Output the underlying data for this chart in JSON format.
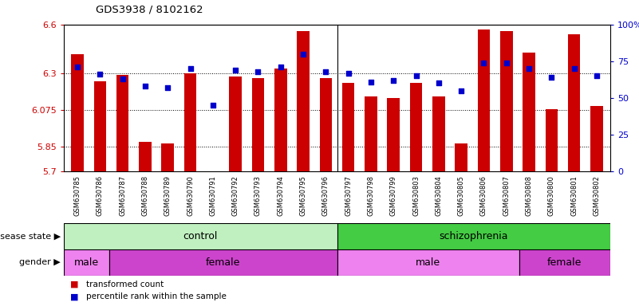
{
  "title": "GDS3938 / 8102162",
  "samples": [
    "GSM630785",
    "GSM630786",
    "GSM630787",
    "GSM630788",
    "GSM630789",
    "GSM630790",
    "GSM630791",
    "GSM630792",
    "GSM630793",
    "GSM630794",
    "GSM630795",
    "GSM630796",
    "GSM630797",
    "GSM630798",
    "GSM630799",
    "GSM630803",
    "GSM630804",
    "GSM630805",
    "GSM630806",
    "GSM630807",
    "GSM630808",
    "GSM630800",
    "GSM630801",
    "GSM630802"
  ],
  "transformed_count": [
    6.42,
    6.25,
    6.29,
    5.88,
    5.87,
    6.3,
    5.7,
    6.28,
    6.27,
    6.33,
    6.56,
    6.27,
    6.24,
    6.16,
    6.15,
    6.24,
    6.16,
    5.87,
    6.57,
    6.56,
    6.43,
    6.08,
    6.54,
    6.1
  ],
  "percentile_rank": [
    71,
    66,
    63,
    58,
    57,
    70,
    45,
    69,
    68,
    71,
    80,
    68,
    67,
    61,
    62,
    65,
    60,
    55,
    74,
    74,
    70,
    64,
    70,
    65
  ],
  "ymin": 5.7,
  "ymax": 6.6,
  "yticks": [
    5.7,
    5.85,
    6.075,
    6.3,
    6.6
  ],
  "ytick_labels": [
    "5.7",
    "5.85",
    "6.075",
    "6.3",
    "6.6"
  ],
  "right_yticks": [
    0,
    25,
    50,
    75,
    100
  ],
  "right_ytick_labels": [
    "0",
    "25",
    "50",
    "75",
    "100%"
  ],
  "bar_color": "#cc0000",
  "dot_color": "#0000cc",
  "bar_width": 0.55,
  "grid_lines": [
    5.85,
    6.075,
    6.3
  ],
  "axis_label_color": "#cc0000",
  "right_axis_color": "#0000cc",
  "plot_bg": "#ffffff",
  "disease_groups": [
    {
      "label": "control",
      "start": 0,
      "end": 12,
      "color": "#c0f0c0"
    },
    {
      "label": "schizophrenia",
      "start": 12,
      "end": 24,
      "color": "#44cc44"
    }
  ],
  "gender_groups": [
    {
      "label": "male",
      "start": 0,
      "end": 2,
      "color": "#ee82ee"
    },
    {
      "label": "female",
      "start": 2,
      "end": 12,
      "color": "#cc44cc"
    },
    {
      "label": "male",
      "start": 12,
      "end": 20,
      "color": "#ee82ee"
    },
    {
      "label": "female",
      "start": 20,
      "end": 24,
      "color": "#cc44cc"
    }
  ],
  "control_separator": 12
}
